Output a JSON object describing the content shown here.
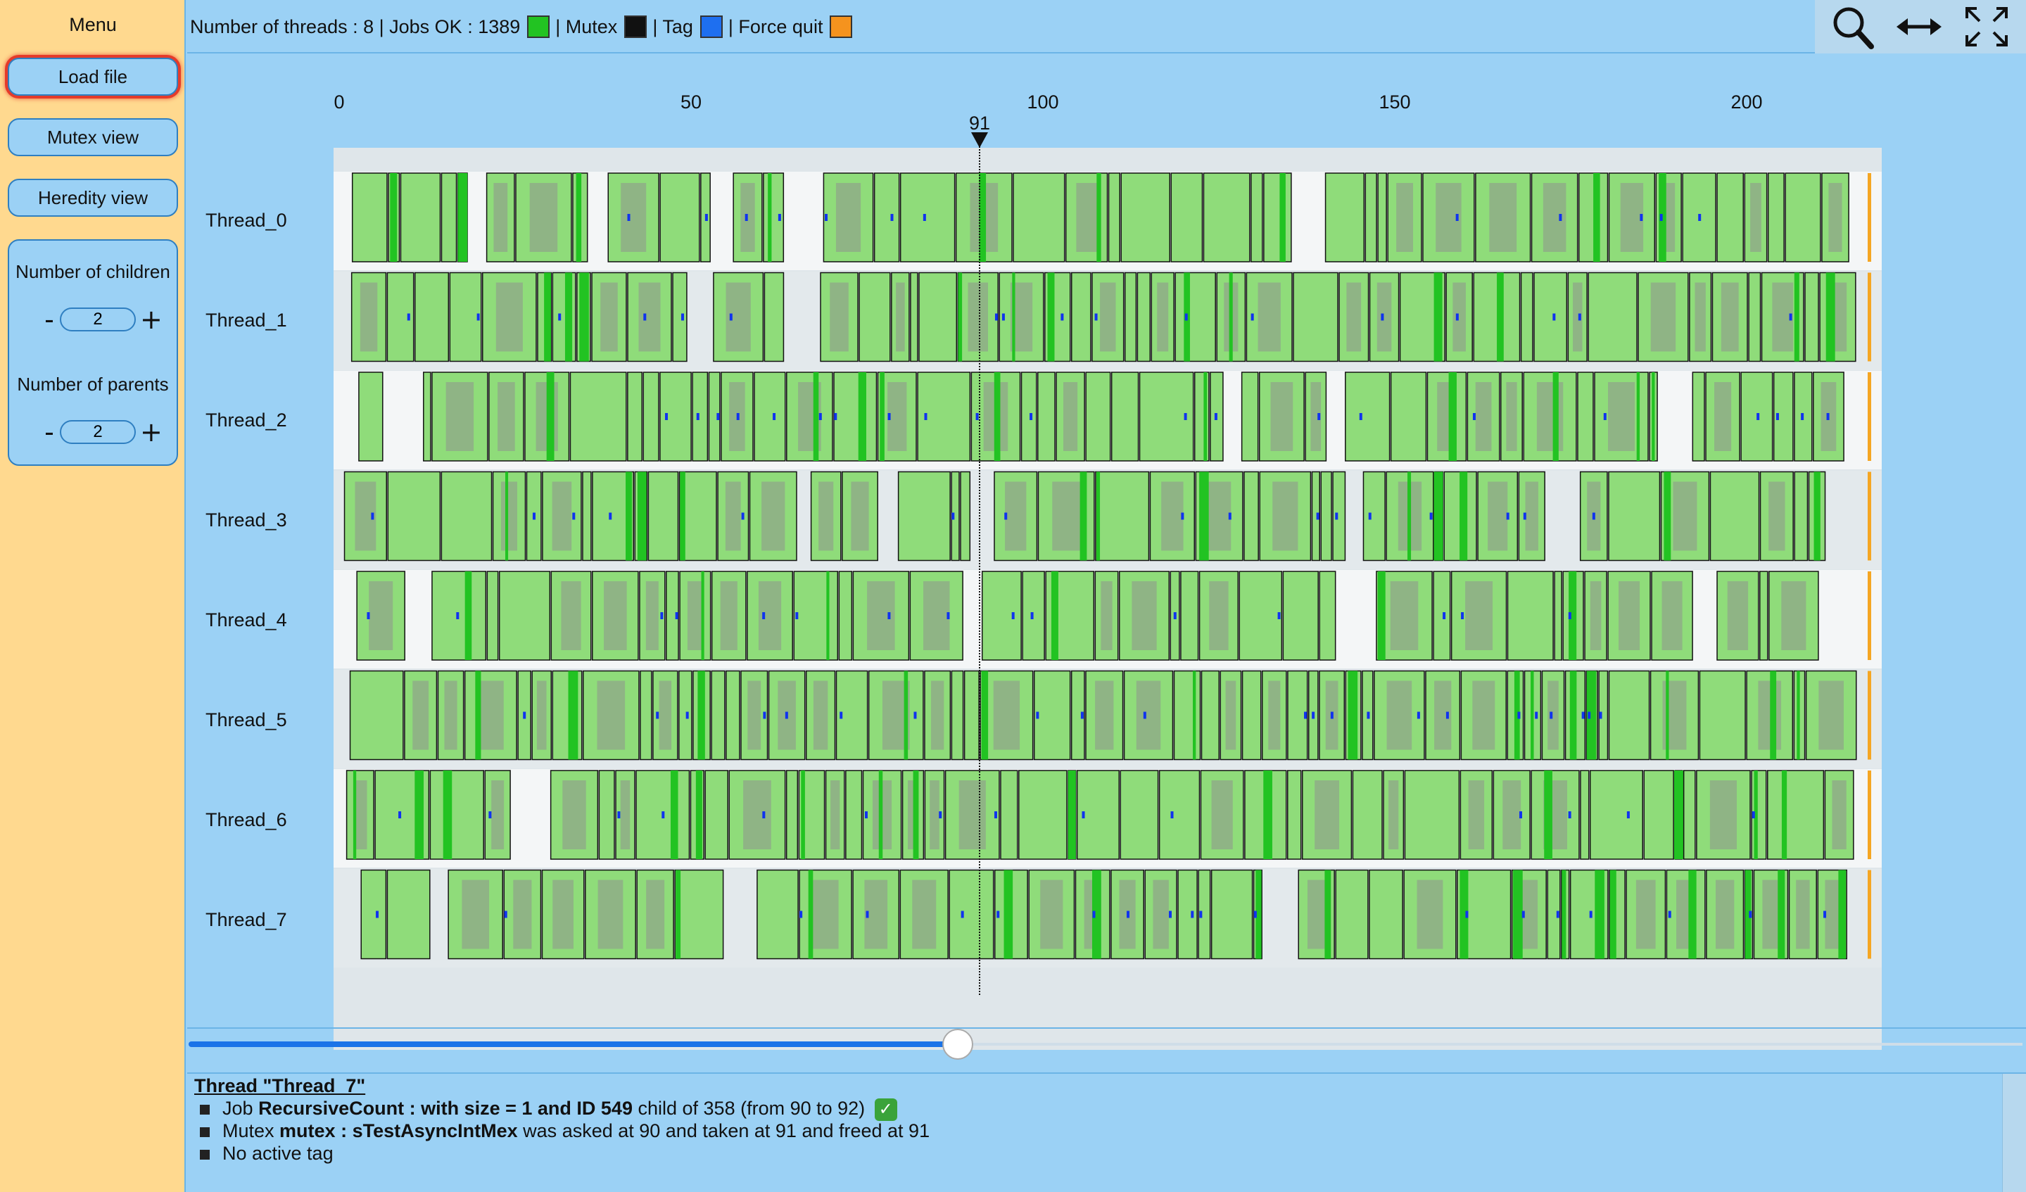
{
  "menu": {
    "title": "Menu",
    "load_file": "Load file",
    "mutex_view": "Mutex view",
    "heredity_view": "Heredity view",
    "children_label": "Number of children",
    "children_value": "2",
    "parents_label": "Number of parents",
    "parents_value": "2",
    "minus": "-",
    "plus": "+"
  },
  "header": {
    "threads_text": "Number of threads : 8 | Jobs OK : 1389",
    "mutex_text": "| Mutex",
    "tag_text": "| Tag",
    "force_quit_text": "| Force quit",
    "colors": {
      "jobs_ok": "#22c322",
      "mutex": "#111111",
      "tag": "#1e6ff0",
      "force_quit": "#f5931e"
    }
  },
  "toolbar": {
    "zoom": "magnifier-icon",
    "fit_horizontal": "horizontal-arrows-icon",
    "fullscreen": "fullscreen-icon"
  },
  "axis": {
    "ticks": [
      "0",
      "50",
      "100",
      "150",
      "200"
    ],
    "cursor": "91"
  },
  "threads": [
    "Thread_0",
    "Thread_1",
    "Thread_2",
    "Thread_3",
    "Thread_4",
    "Thread_5",
    "Thread_6",
    "Thread_7"
  ],
  "slider": {
    "value_fraction": 0.42
  },
  "info": {
    "title": "Thread \"Thread_7\"",
    "job_prefix": "Job",
    "job_name": "RecursiveCount : with size = 1 and ID 549",
    "job_suffix": "child of 358 (from 90 to 92)",
    "mutex_prefix": "Mutex",
    "mutex_name": "mutex : sTestAsyncIntMex",
    "mutex_suffix": "was asked at 90 and taken at 91 and freed at 91",
    "tag_text": "No active tag",
    "check": "✓"
  }
}
